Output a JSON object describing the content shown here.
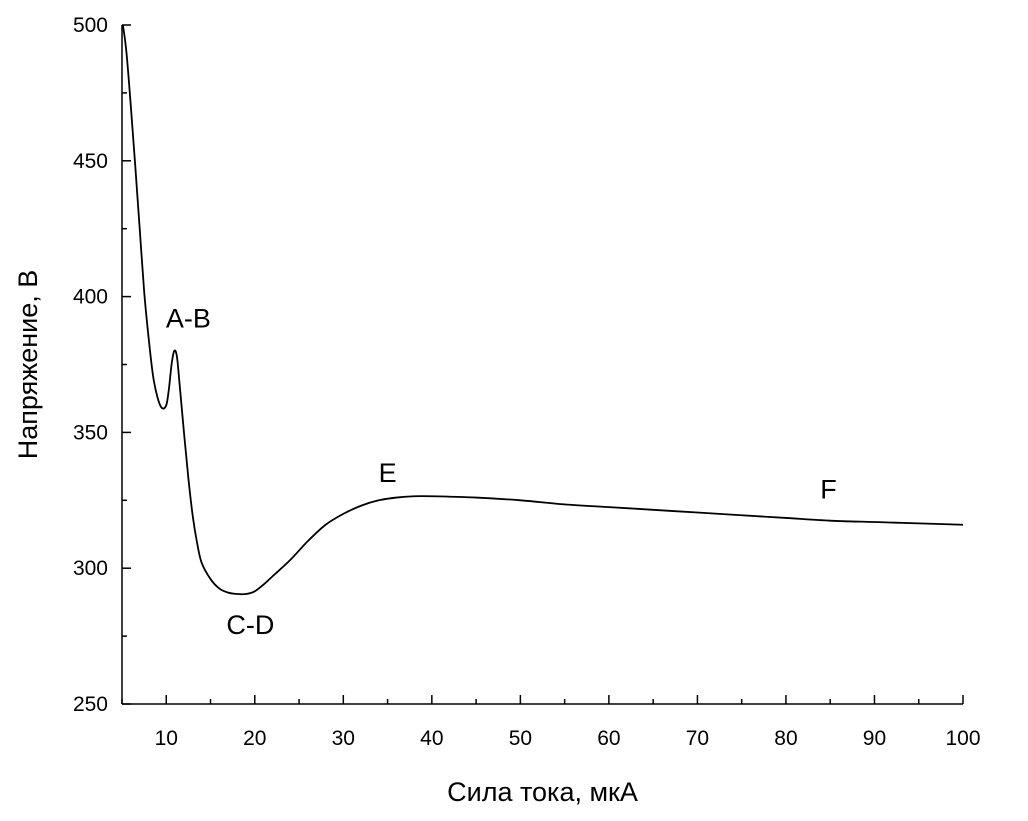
{
  "chart_data": {
    "type": "line",
    "xlabel": "Сила тока, мкА",
    "ylabel": "Напряжение, В",
    "xlim": [
      5,
      100
    ],
    "ylim": [
      250,
      500
    ],
    "xticks": [
      10,
      20,
      30,
      40,
      50,
      60,
      70,
      80,
      90,
      100
    ],
    "yticks": [
      250,
      300,
      350,
      400,
      450,
      500
    ],
    "grid": false,
    "series": [
      {
        "x": [
          5.1,
          5.5,
          6,
          6.5,
          7,
          7.5,
          8,
          8.5,
          9,
          9.5,
          10,
          10.3,
          10.6,
          10.9,
          11.2,
          11.5,
          12,
          12.5,
          13,
          13.5,
          14,
          15,
          16,
          17,
          18,
          19,
          20,
          21,
          22,
          24,
          26,
          28,
          30,
          32,
          34,
          36,
          38,
          40,
          45,
          50,
          55,
          60,
          65,
          70,
          75,
          80,
          85,
          90,
          95,
          100
        ],
        "y": [
          500,
          490,
          470,
          448,
          425,
          402,
          385,
          371,
          363,
          359,
          360,
          366,
          375,
          380,
          378,
          368,
          350,
          333,
          319,
          309,
          302,
          296,
          292.5,
          291,
          290.5,
          290.5,
          291.5,
          294,
          297,
          303,
          310,
          316,
          320,
          323,
          325,
          326,
          326.5,
          326.5,
          326,
          325,
          323.5,
          322.5,
          321.5,
          320.5,
          319.5,
          318.5,
          317.5,
          317,
          316.5,
          316
        ]
      }
    ],
    "annotations": [
      {
        "text": "A-B",
        "x": 12.5,
        "y": 392
      },
      {
        "text": "C-D",
        "x": 19.5,
        "y": 279
      },
      {
        "text": "E",
        "x": 35,
        "y": 335
      },
      {
        "text": "F",
        "x": 84.8,
        "y": 329
      }
    ]
  }
}
